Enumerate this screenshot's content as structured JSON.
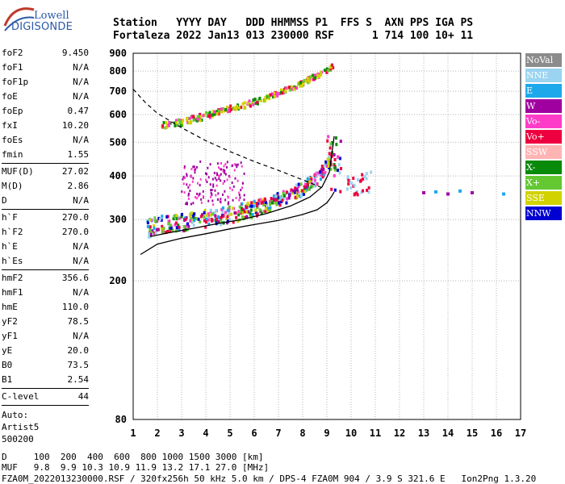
{
  "logo": {
    "line1": "Lowell",
    "line2": "DIGISONDE"
  },
  "header": {
    "row1": "Station   YYYY DAY   DDD HHMMSS P1  FFS S  AXN PPS IGA PS",
    "row2": "Fortaleza 2022 Jan13 013 230000 RSF      1 714 100 10+ 11"
  },
  "params": [
    {
      "name": "foF2",
      "value": "9.450"
    },
    {
      "name": "foF1",
      "value": "N/A"
    },
    {
      "name": "foF1p",
      "value": "N/A"
    },
    {
      "name": "foE",
      "value": "N/A"
    },
    {
      "name": "foEp",
      "value": "0.47"
    },
    {
      "name": "fxI",
      "value": "10.20"
    },
    {
      "name": "foEs",
      "value": "N/A"
    },
    {
      "name": "fmin",
      "value": "1.55"
    },
    {
      "divider": true
    },
    {
      "name": "MUF(D)",
      "value": "27.02"
    },
    {
      "name": "M(D)",
      "value": "2.86"
    },
    {
      "name": "D",
      "value": "N/A"
    },
    {
      "divider": true
    },
    {
      "name": "h`F",
      "value": "270.0"
    },
    {
      "name": "h`F2",
      "value": "270.0"
    },
    {
      "name": "h`E",
      "value": "N/A"
    },
    {
      "name": "h`Es",
      "value": "N/A"
    },
    {
      "divider": true
    },
    {
      "name": "hmF2",
      "value": "356.6"
    },
    {
      "name": "hmF1",
      "value": "N/A"
    },
    {
      "name": "hmE",
      "value": "110.0"
    },
    {
      "name": "yF2",
      "value": "78.5"
    },
    {
      "name": "yF1",
      "value": "N/A"
    },
    {
      "name": "yE",
      "value": "20.0"
    },
    {
      "name": "B0",
      "value": "73.5"
    },
    {
      "name": "B1",
      "value": "2.54"
    },
    {
      "divider": true
    },
    {
      "name": "C-level",
      "value": "44"
    }
  ],
  "auto": {
    "line1": "Auto:",
    "line2": "Artist5",
    "line3": "500200"
  },
  "legend": [
    {
      "label": "NoVal",
      "color": "#8c8c8c"
    },
    {
      "label": "NNE",
      "color": "#9ad4f0"
    },
    {
      "label": "E",
      "color": "#1ea8ec"
    },
    {
      "label": "W",
      "color": "#a000a0"
    },
    {
      "label": "Vo-",
      "color": "#ff3cc8"
    },
    {
      "label": "Vo+",
      "color": "#ee0040"
    },
    {
      "label": "SSW",
      "color": "#ffb4b4"
    },
    {
      "label": "X-",
      "color": "#0a8a0a"
    },
    {
      "label": "X+",
      "color": "#64c832"
    },
    {
      "label": "SSE",
      "color": "#d2d200"
    },
    {
      "label": "NNW",
      "color": "#0000d2"
    }
  ],
  "footer": {
    "line1": "D     100  200  400  600  800 1000 1500 3000 [km]",
    "line2": "MUF   9.8  9.9 10.3 10.9 11.9 13.2 17.1 27.0 [MHz]",
    "line3": "FZA0M_2022013230000.RSF / 320fx256h 50 kHz 5.0 km / DPS-4 FZA0M 904 / 3.9 S 321.6 E   Ion2Png 1.3.20"
  },
  "chart_data": {
    "type": "scatter",
    "title": "",
    "xlabel": "",
    "ylabel": "",
    "xlim": [
      1,
      17
    ],
    "ylim": [
      80,
      900
    ],
    "y_scale": "log",
    "grid": true,
    "x_ticks": [
      1,
      2,
      3,
      4,
      5,
      6,
      7,
      8,
      9,
      10,
      11,
      12,
      13,
      14,
      15,
      16,
      17
    ],
    "y_ticks": [
      80,
      200,
      300,
      400,
      500,
      600,
      700,
      800,
      900
    ],
    "traces": [
      {
        "name": "O-trace",
        "x": [
          1.6,
          2.0,
          2.5,
          3.0,
          3.5,
          4.0,
          4.5,
          5.0,
          5.5,
          6.0,
          6.5,
          7.0,
          7.5,
          8.0,
          8.5,
          8.8,
          9.0,
          9.2
        ],
        "y": [
          282,
          288,
          292,
          294,
          298,
          302,
          305,
          310,
          316,
          322,
          330,
          340,
          352,
          368,
          390,
          410,
          430,
          460
        ]
      },
      {
        "name": "profile",
        "x": [
          1.7,
          2.5,
          3.5,
          4.5,
          5.5,
          6.5,
          7.5,
          8.3,
          8.8,
          9.1,
          9.3
        ],
        "y": [
          268,
          275,
          283,
          292,
          300,
          312,
          328,
          348,
          372,
          410,
          520
        ]
      },
      {
        "name": "profile-lower",
        "x": [
          1.3,
          2.0,
          3.0,
          4.0,
          5.0,
          6.0,
          7.0,
          8.0,
          8.6,
          9.0,
          9.2,
          9.3
        ],
        "y": [
          238,
          255,
          265,
          273,
          282,
          290,
          298,
          310,
          320,
          335,
          350,
          360
        ]
      },
      {
        "name": "MUF",
        "x": [
          1.0,
          1.5,
          2.0,
          3.0,
          4.0,
          5.0,
          6.0,
          7.0,
          8.0,
          8.8
        ],
        "y": [
          710,
          650,
          605,
          550,
          505,
          470,
          440,
          415,
          390,
          370
        ]
      },
      {
        "name": "second-hop",
        "x": [
          2.2,
          3.0,
          3.5,
          4.0,
          4.5,
          5.0,
          5.5,
          6.0,
          6.5,
          7.0,
          7.5,
          8.0,
          8.5,
          9.0,
          9.3
        ],
        "y": [
          555,
          570,
          582,
          596,
          610,
          622,
          636,
          650,
          668,
          690,
          712,
          740,
          770,
          800,
          830
        ]
      },
      {
        "name": "spread-echoes",
        "x": [
          13.0,
          13.5,
          14.0,
          14.5,
          15.0,
          16.3
        ],
        "y": [
          358,
          360,
          355,
          362,
          358,
          355
        ]
      }
    ]
  }
}
